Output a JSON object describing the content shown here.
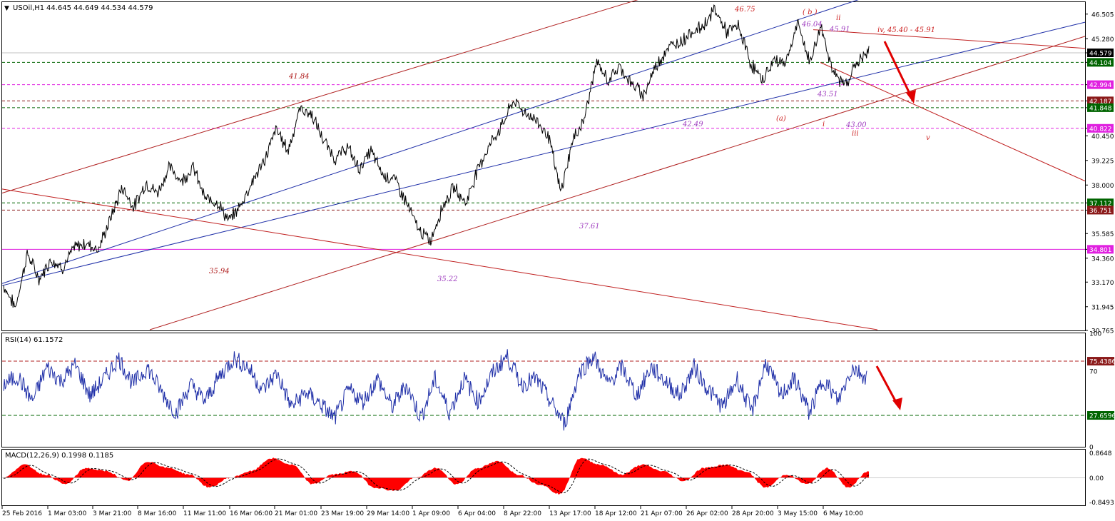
{
  "header": {
    "symbol": "USOil,H1",
    "ohlc": "44.645 44.649 44.534 44.579"
  },
  "chart_data": [
    {
      "type": "line",
      "panel": "price",
      "series": [
        {
          "name": "USOil,H1",
          "values_anchor": [
            33.0,
            31.9,
            34.6,
            33.3,
            34.3,
            33.9,
            34.9,
            35.1,
            34.8,
            36.3,
            37.9,
            36.9,
            38.1,
            37.6,
            38.9,
            38.2,
            38.9,
            37.3,
            37.2,
            36.2,
            37.0,
            38.2,
            39.2,
            40.8,
            39.7,
            41.8,
            41.5,
            40.2,
            39.3,
            39.9,
            38.8,
            39.7,
            38.5,
            38.3,
            37.1,
            35.8,
            35.2,
            36.9,
            37.9,
            37.1,
            38.8,
            40.0,
            40.9,
            42.2,
            41.6,
            41.2,
            40.4,
            37.6,
            40.2,
            41.3,
            44.1,
            43.2,
            43.9,
            43.0,
            42.5,
            43.9,
            44.8,
            45.1,
            45.6,
            45.9,
            46.75,
            45.6,
            45.9,
            44.1,
            43.2,
            44.2,
            44.1,
            46.04,
            44.1,
            45.91,
            43.51,
            43.0,
            44.1,
            44.6
          ],
          "note": "hourly closes approximated at anchor points between 25 Feb 2016 and 10 May 2016"
        }
      ],
      "categories": [
        "25 Feb 2016",
        "1 Mar 03:00",
        "3 Mar 21:00",
        "8 Mar 16:00",
        "11 Mar 11:00",
        "16 Mar 06:00",
        "21 Mar 01:00",
        "23 Mar 19:00",
        "29 Mar 14:00",
        "1 Apr 09:00",
        "6 Apr 04:00",
        "8 Apr 22:00",
        "13 Apr 17:00",
        "18 Apr 12:00",
        "21 Apr 07:00",
        "26 Apr 02:00",
        "28 Apr 20:00",
        "3 May 15:00",
        "6 May 10:00"
      ],
      "y_ticks": [
        "46.505",
        "45.280",
        "44.579",
        "44.104",
        "42.994",
        "42.187",
        "41.848",
        "40.822",
        "40.450",
        "39.225",
        "38.000",
        "37.112",
        "36.751",
        "35.585",
        "34.801",
        "34.360",
        "33.170",
        "31.945",
        "30.765"
      ],
      "ylim": [
        30.765,
        47.1
      ],
      "price_badges": [
        {
          "label": "44.579",
          "color": "#000000"
        },
        {
          "label": "44.104",
          "color": "#006400"
        },
        {
          "label": "42.994",
          "color": "#e020e0"
        },
        {
          "label": "42.187",
          "color": "#8b1a1a"
        },
        {
          "label": "41.848",
          "color": "#006400"
        },
        {
          "label": "40.822",
          "color": "#e020e0"
        },
        {
          "label": "37.112",
          "color": "#006400"
        },
        {
          "label": "36.751",
          "color": "#8b1a1a"
        },
        {
          "label": "34.801",
          "color": "#e020e0"
        }
      ],
      "annotations": [
        {
          "text": "46.75",
          "color": "#cc2222"
        },
        {
          "text": "( b )",
          "color": "#cc2222"
        },
        {
          "text": "ii",
          "color": "#cc2222"
        },
        {
          "text": "46.04",
          "color": "#a040c0"
        },
        {
          "text": "45.91",
          "color": "#a040c0"
        },
        {
          "text": "iv, 45.40 - 45.91",
          "color": "#cc2222"
        },
        {
          "text": "41.84",
          "color": "#b02020"
        },
        {
          "text": "(a)",
          "color": "#cc2222"
        },
        {
          "text": "43.51",
          "color": "#a040c0"
        },
        {
          "text": "i",
          "color": "#cc2222"
        },
        {
          "text": "43.00",
          "color": "#a040c0"
        },
        {
          "text": "iii",
          "color": "#cc2222"
        },
        {
          "text": "v",
          "color": "#cc2222"
        },
        {
          "text": "42.49",
          "color": "#a040c0"
        },
        {
          "text": "37.61",
          "color": "#a040c0"
        },
        {
          "text": "35.94",
          "color": "#b02020"
        },
        {
          "text": "35.22",
          "color": "#a040c0"
        }
      ]
    },
    {
      "type": "line",
      "panel": "rsi",
      "title": "RSI(14) 61.1572",
      "y_ticks": [
        "100",
        "75.4386",
        "70",
        "27.6596",
        "0"
      ],
      "levels": [
        75.4386,
        27.6596
      ],
      "ylim": [
        0,
        100
      ],
      "series": [
        {
          "name": "RSI(14)",
          "color": "#1f2fa8",
          "values_anchor": [
            55,
            62,
            40,
            70,
            58,
            72,
            45,
            60,
            78,
            55,
            70,
            48,
            30,
            55,
            40,
            62,
            78,
            70,
            50,
            65,
            35,
            48,
            38,
            25,
            50,
            40,
            60,
            35,
            55,
            25,
            60,
            30,
            60,
            40,
            65,
            80,
            55,
            60,
            40,
            20,
            65,
            80,
            55,
            70,
            45,
            70,
            58,
            45,
            70,
            50,
            35,
            60,
            30,
            75,
            45,
            60,
            30,
            60,
            40,
            70,
            61
          ]
        }
      ]
    },
    {
      "type": "area",
      "panel": "macd",
      "title": "MACD(12,26,9) 0.1998 0.1185",
      "y_ticks": [
        "0.8648",
        "0.00",
        "-0.8493"
      ],
      "ylim": [
        -0.8493,
        0.8648
      ],
      "series": [
        {
          "name": "MACD histogram",
          "color": "#ff0000",
          "values_anchor": [
            0.0,
            0.4,
            0.1,
            -0.2,
            0.3,
            0.2,
            -0.1,
            0.5,
            0.3,
            0.1,
            -0.3,
            0.0,
            0.2,
            0.6,
            0.4,
            -0.2,
            0.1,
            0.2,
            -0.3,
            -0.4,
            0.0,
            0.3,
            -0.2,
            0.3,
            0.5,
            0.1,
            -0.2,
            -0.5,
            0.6,
            0.4,
            0.1,
            0.4,
            0.2,
            -0.1,
            0.3,
            0.4,
            0.2,
            -0.3,
            0.1,
            -0.2,
            0.3,
            -0.3,
            0.2
          ]
        },
        {
          "name": "Signal",
          "color": "#000000"
        }
      ]
    }
  ]
}
